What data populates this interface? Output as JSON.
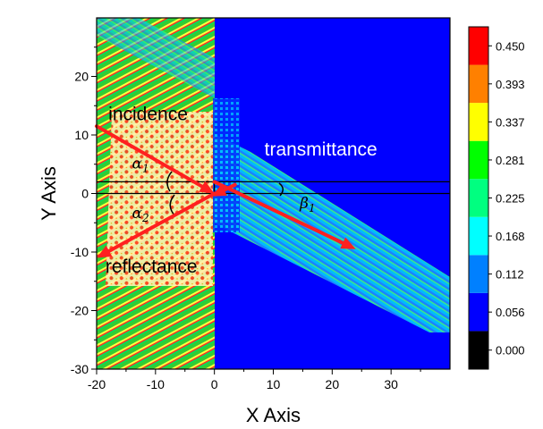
{
  "chart_data": {
    "type": "heatmap",
    "title": "",
    "xlabel": "X Axis",
    "ylabel": "Y Axis",
    "xlim": [
      -20,
      40
    ],
    "ylim": [
      -30,
      30
    ],
    "xticks": [
      -20,
      -10,
      0,
      10,
      20,
      30
    ],
    "yticks": [
      -30,
      -20,
      -10,
      0,
      10,
      20
    ],
    "grid": false,
    "background_color": "#0000FF",
    "colorbar": {
      "levels": [
        "0.000",
        "0.056",
        "0.112",
        "0.168",
        "0.225",
        "0.281",
        "0.337",
        "0.393",
        "0.450"
      ],
      "colors": [
        "#000000",
        "#0000FF",
        "#0080FF",
        "#00FFFF",
        "#00FF80",
        "#00FF00",
        "#FFFF00",
        "#FF8000",
        "#FF0000"
      ]
    },
    "reference_lines_y": [
      2,
      0
    ],
    "interface_x": 0,
    "arrows": [
      {
        "from": [
          -20,
          11.5
        ],
        "to": [
          0,
          0
        ]
      },
      {
        "from": [
          0,
          0
        ],
        "to": [
          -20,
          -11
        ]
      },
      {
        "from": [
          0,
          2
        ],
        "to": [
          24,
          -9.5
        ]
      },
      {
        "from": [
          3.5,
          1.5
        ],
        "to": [
          -0.5,
          -0.5
        ]
      }
    ],
    "annotations": [
      {
        "text": "incidence",
        "x": -18,
        "y": 12.5,
        "color": "#000000"
      },
      {
        "text": "transmittance",
        "x": 8.5,
        "y": 6.5,
        "color": "#FFFFFF"
      },
      {
        "text": "reflectance",
        "x": -18.5,
        "y": -13.5,
        "color": "#000000"
      }
    ],
    "angle_labels": [
      {
        "text": "α",
        "sub": "1",
        "x": -14,
        "y": 4.3
      },
      {
        "text": "α",
        "sub": "2",
        "x": -14,
        "y": -4.2
      },
      {
        "text": "β",
        "sub": "1",
        "x": 14.5,
        "y": -2.5
      }
    ]
  }
}
